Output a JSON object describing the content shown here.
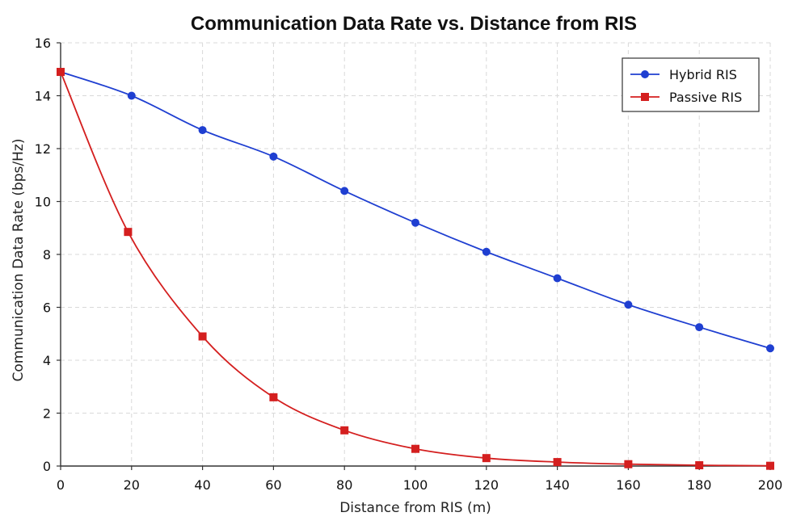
{
  "chart_data": {
    "type": "line",
    "title": "Communication Data Rate vs. Distance from RIS",
    "xlabel": "Distance from RIS (m)",
    "ylabel": "Communication Data Rate (bps/Hz)",
    "xlim": [
      0,
      200
    ],
    "ylim": [
      0,
      16
    ],
    "xticks": [
      0,
      20,
      40,
      60,
      80,
      100,
      120,
      140,
      160,
      180,
      200
    ],
    "yticks": [
      0,
      2,
      4,
      6,
      8,
      10,
      12,
      14,
      16
    ],
    "grid": true,
    "legend_position": "top-right",
    "series": [
      {
        "name": "Hybrid RIS",
        "color": "#1f3fd1",
        "marker": "circle",
        "x": [
          0,
          20,
          40,
          60,
          80,
          100,
          120,
          140,
          160,
          180,
          200
        ],
        "y": [
          14.9,
          14.0,
          12.7,
          11.7,
          10.4,
          9.2,
          8.1,
          7.1,
          6.1,
          5.25,
          4.45
        ]
      },
      {
        "name": "Passive RIS",
        "color": "#d41f1f",
        "marker": "square",
        "x": [
          0,
          19,
          40,
          60,
          80,
          100,
          120,
          140,
          160,
          180,
          200
        ],
        "y": [
          14.9,
          8.85,
          4.9,
          2.6,
          1.35,
          0.65,
          0.3,
          0.15,
          0.07,
          0.03,
          0.01
        ]
      }
    ]
  }
}
